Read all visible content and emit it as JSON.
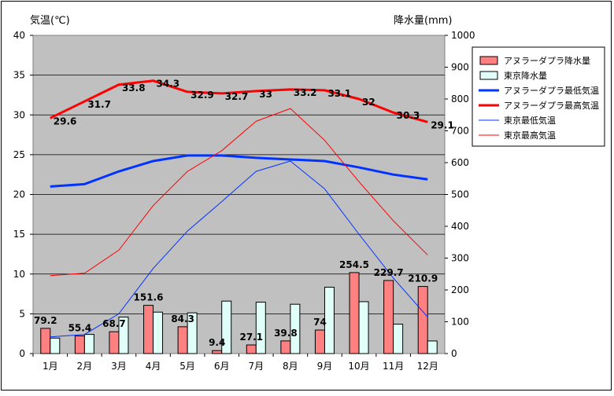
{
  "chart_data": {
    "type": "bar+line",
    "categories": [
      "1月",
      "2月",
      "3月",
      "4月",
      "5月",
      "6月",
      "7月",
      "8月",
      "9月",
      "10月",
      "11月",
      "12月"
    ],
    "ylabel_left": "気温(℃)",
    "ylabel_right": "降水量(mm)",
    "ylim_left": [
      0,
      40
    ],
    "ylim_right": [
      0,
      1000
    ],
    "yticks_left": [
      0,
      5,
      10,
      15,
      20,
      25,
      30,
      35,
      40
    ],
    "yticks_right": [
      0,
      100,
      200,
      300,
      400,
      500,
      600,
      700,
      800,
      900,
      1000
    ],
    "grid": "horizontal",
    "legend_position": "right",
    "bar_series": [
      {
        "name": "アヌラーダプラ降水量",
        "axis": "right",
        "color": "#ff8080",
        "values": [
          79.2,
          55.4,
          68.7,
          151.6,
          84.3,
          9.4,
          27.1,
          39.8,
          74,
          254.5,
          229.7,
          210.9
        ],
        "labels": [
          "79.2",
          "55.4",
          "68.7",
          "151.6",
          "84.3",
          "9.4",
          "27.1",
          "39.8",
          "74",
          "254.5",
          "229.7",
          "210.9"
        ]
      },
      {
        "name": "東京降水量",
        "axis": "right",
        "color": "#e0fff8",
        "values": [
          48.6,
          60.2,
          114.5,
          130.3,
          128,
          164.9,
          161.5,
          155.1,
          208.5,
          163.1,
          92.5,
          39.6
        ],
        "labels": []
      }
    ],
    "line_series": [
      {
        "name": "アヌラーダプラ最低気温",
        "axis": "left",
        "color": "#0033ff",
        "width": 3,
        "values": [
          21,
          21.3,
          22.9,
          24.2,
          24.9,
          24.9,
          24.6,
          24.4,
          24.2,
          23.4,
          22.5,
          21.9
        ],
        "labels": []
      },
      {
        "name": "アヌラーダプラ最高気温",
        "axis": "left",
        "color": "#ff0000",
        "width": 3,
        "values": [
          29.6,
          31.7,
          33.8,
          34.3,
          32.9,
          32.7,
          33,
          33.2,
          33.1,
          32,
          30.3,
          29.1
        ],
        "labels": [
          "29.6",
          "31.7",
          "33.8",
          "34.3",
          "32.9",
          "32.7",
          "33",
          "33.2",
          "33.1",
          "32",
          "30.3",
          "29.1"
        ]
      },
      {
        "name": "東京最低気温",
        "axis": "left",
        "color": "#0033ff",
        "width": 1,
        "values": [
          2.1,
          2.4,
          5,
          10.7,
          15.4,
          19.1,
          22.9,
          24.2,
          20.7,
          15,
          9.5,
          4.6
        ],
        "labels": []
      },
      {
        "name": "東京最高気温",
        "axis": "left",
        "color": "#ff0000",
        "width": 1,
        "values": [
          9.8,
          10.1,
          13,
          18.6,
          22.9,
          25.5,
          29.2,
          30.8,
          26.8,
          21.6,
          16.7,
          12.4
        ],
        "labels": []
      }
    ],
    "legend": [
      {
        "name": "アヌラーダプラ降水量",
        "kind": "bar",
        "color": "#ff8080"
      },
      {
        "name": "東京降水量",
        "kind": "bar",
        "color": "#e0fff8"
      },
      {
        "name": "アヌラーダプラ最低気温",
        "kind": "line",
        "color": "#0033ff",
        "width": 3
      },
      {
        "name": "アヌラーダプラ最高気温",
        "kind": "line",
        "color": "#ff0000",
        "width": 3
      },
      {
        "name": "東京最低気温",
        "kind": "line",
        "color": "#0033ff",
        "width": 1
      },
      {
        "name": "東京最高気温",
        "kind": "line",
        "color": "#ff0000",
        "width": 1
      }
    ]
  }
}
